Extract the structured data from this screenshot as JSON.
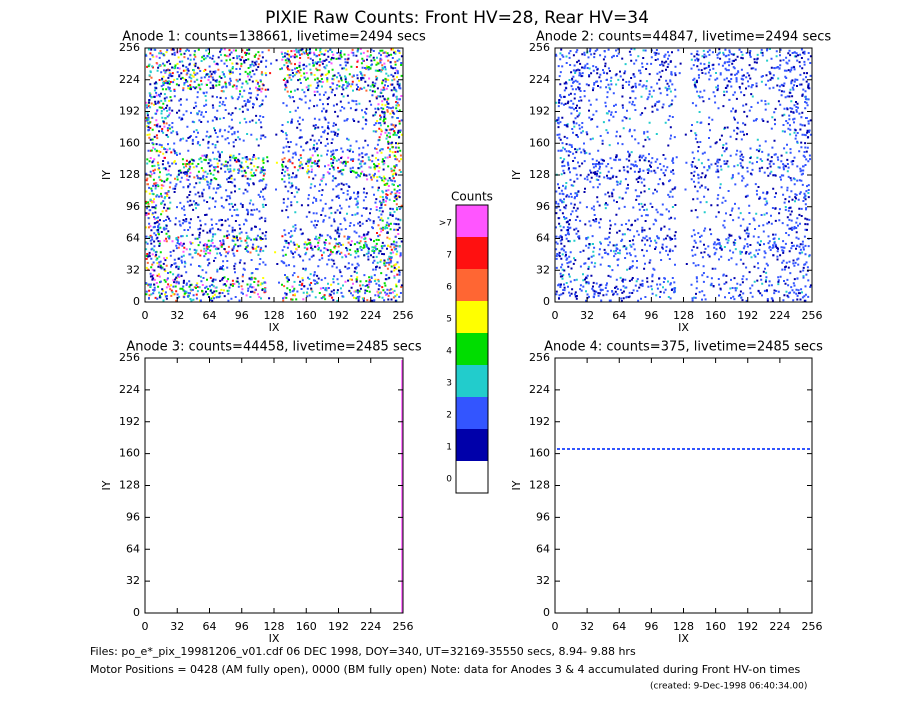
{
  "title": "PIXIE Raw Counts:  Front HV=28, Rear HV=34",
  "panels": [
    {
      "title": "Anode 1: counts=138661, livetime=2494 secs",
      "xlabel": "IX",
      "ylabel": "IY",
      "xlim": [
        0,
        256
      ],
      "ylim": [
        0,
        256
      ],
      "xticks": [
        0,
        32,
        64,
        96,
        128,
        160,
        192,
        224,
        256
      ],
      "yticks": [
        0,
        32,
        64,
        96,
        128,
        160,
        192,
        224,
        256
      ]
    },
    {
      "title": "Anode 2: counts=44847, livetime=2494 secs",
      "xlabel": "IX",
      "ylabel": "IY",
      "xlim": [
        0,
        256
      ],
      "ylim": [
        0,
        256
      ],
      "xticks": [
        0,
        32,
        64,
        96,
        128,
        160,
        192,
        224,
        256
      ],
      "yticks": [
        0,
        32,
        64,
        96,
        128,
        160,
        192,
        224,
        256
      ]
    },
    {
      "title": "Anode 3: counts=44458, livetime=2485 secs",
      "xlabel": "IX",
      "ylabel": "IY",
      "xlim": [
        0,
        256
      ],
      "ylim": [
        0,
        256
      ],
      "xticks": [
        0,
        32,
        64,
        96,
        128,
        160,
        192,
        224,
        256
      ],
      "yticks": [
        0,
        32,
        64,
        96,
        128,
        160,
        192,
        224,
        256
      ]
    },
    {
      "title": "Anode 4: counts=375, livetime=2485 secs",
      "xlabel": "IX",
      "ylabel": "IY",
      "xlim": [
        0,
        256
      ],
      "ylim": [
        0,
        256
      ],
      "xticks": [
        0,
        32,
        64,
        96,
        128,
        160,
        192,
        224,
        256
      ],
      "yticks": [
        0,
        32,
        64,
        96,
        128,
        160,
        192,
        224,
        256
      ]
    }
  ],
  "colorbar": {
    "title": "Counts",
    "labels": [
      ">7",
      "7",
      "6",
      "5",
      "4",
      "3",
      "2",
      "1",
      "0"
    ],
    "colors": [
      "#ff55ff",
      "#ff1010",
      "#ff6633",
      "#ffff00",
      "#00dd00",
      "#22cccc",
      "#3355ff",
      "#0000aa",
      "#ffffff"
    ]
  },
  "footer": [
    "Files: po_e*_pix_19981206_v01.cdf    06 DEC 1998, DOY=340, UT=32169-35550 secs,  8.94- 9.88 hrs",
    "Motor Positions = 0428 (AM fully open), 0000 (BM fully open)    Note: data for Anodes 3 & 4 accumulated during Front HV-on times",
    "(created:  9-Dec-1998 06:40:34.00)"
  ]
}
